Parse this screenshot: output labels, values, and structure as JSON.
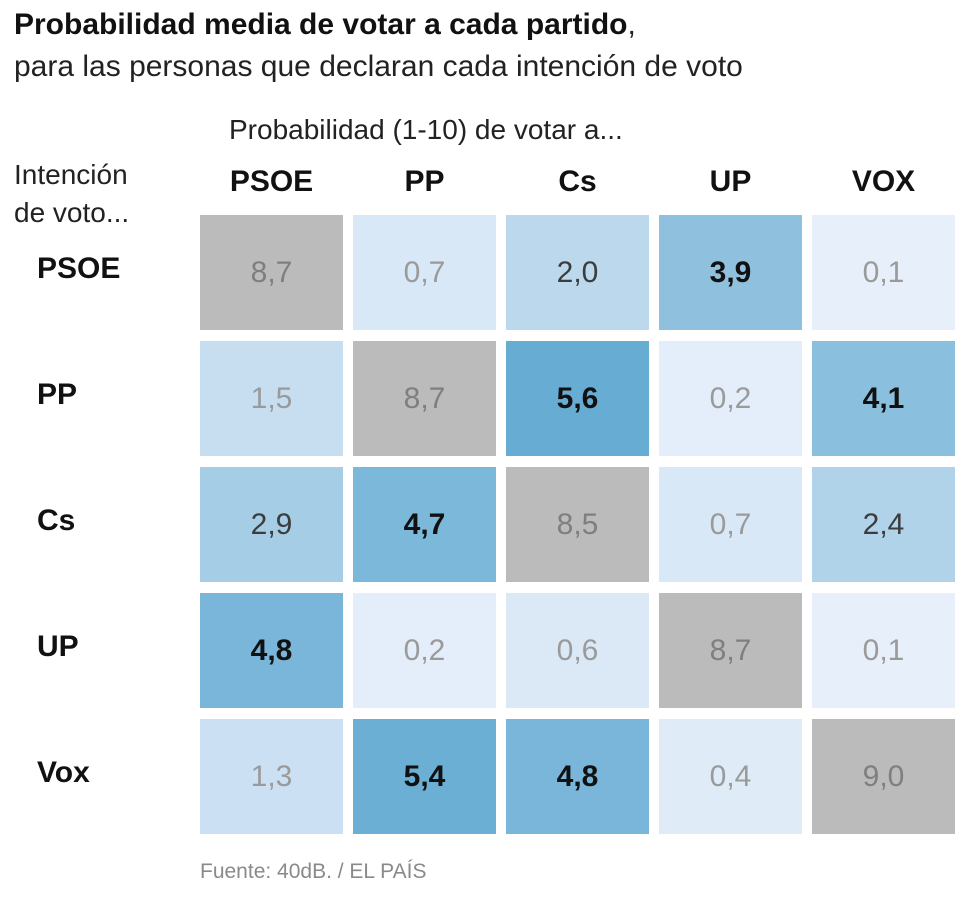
{
  "title": "Probabilidad media de votar a cada partido",
  "title_punct": ",",
  "subtitle": "para las personas que declaran cada intención de voto",
  "column_caption": "Probabilidad (1-10) de votar a...",
  "row_caption_line1": "Intención",
  "row_caption_line2": "de voto...",
  "source": "Fuente: 40dB. / EL PAÍS",
  "colors": {
    "diagonal": "#bbbbbb",
    "scale_low": "#e9f0fb",
    "scale_high": "#5ea8d0",
    "text_dim": "#9a9a9a",
    "text_mid": "#3c3c3c",
    "text_strong": "#111111"
  },
  "chart_data": {
    "type": "heatmap",
    "title": "Probabilidad media de votar a cada partido",
    "subtitle": "para las personas que declaran cada intención de voto",
    "xlabel": "Probabilidad (1-10) de votar a...",
    "ylabel": "Intención de voto...",
    "columns": [
      "PSOE",
      "PP",
      "Cs",
      "UP",
      "VOX"
    ],
    "rows": [
      "PSOE",
      "PP",
      "Cs",
      "UP",
      "Vox"
    ],
    "values": [
      [
        "8,7",
        "0,7",
        "2,0",
        "3,9",
        "0,1"
      ],
      [
        "1,5",
        "8,7",
        "5,6",
        "0,2",
        "4,1"
      ],
      [
        "2,9",
        "4,7",
        "8,5",
        "0,7",
        "2,4"
      ],
      [
        "4,8",
        "0,2",
        "0,6",
        "8,7",
        "0,1"
      ],
      [
        "1,3",
        "5,4",
        "4,8",
        "0,4",
        "9,0"
      ]
    ],
    "scale_range": [
      0,
      6
    ],
    "source": "Fuente: 40dB. / EL PAÍS"
  }
}
